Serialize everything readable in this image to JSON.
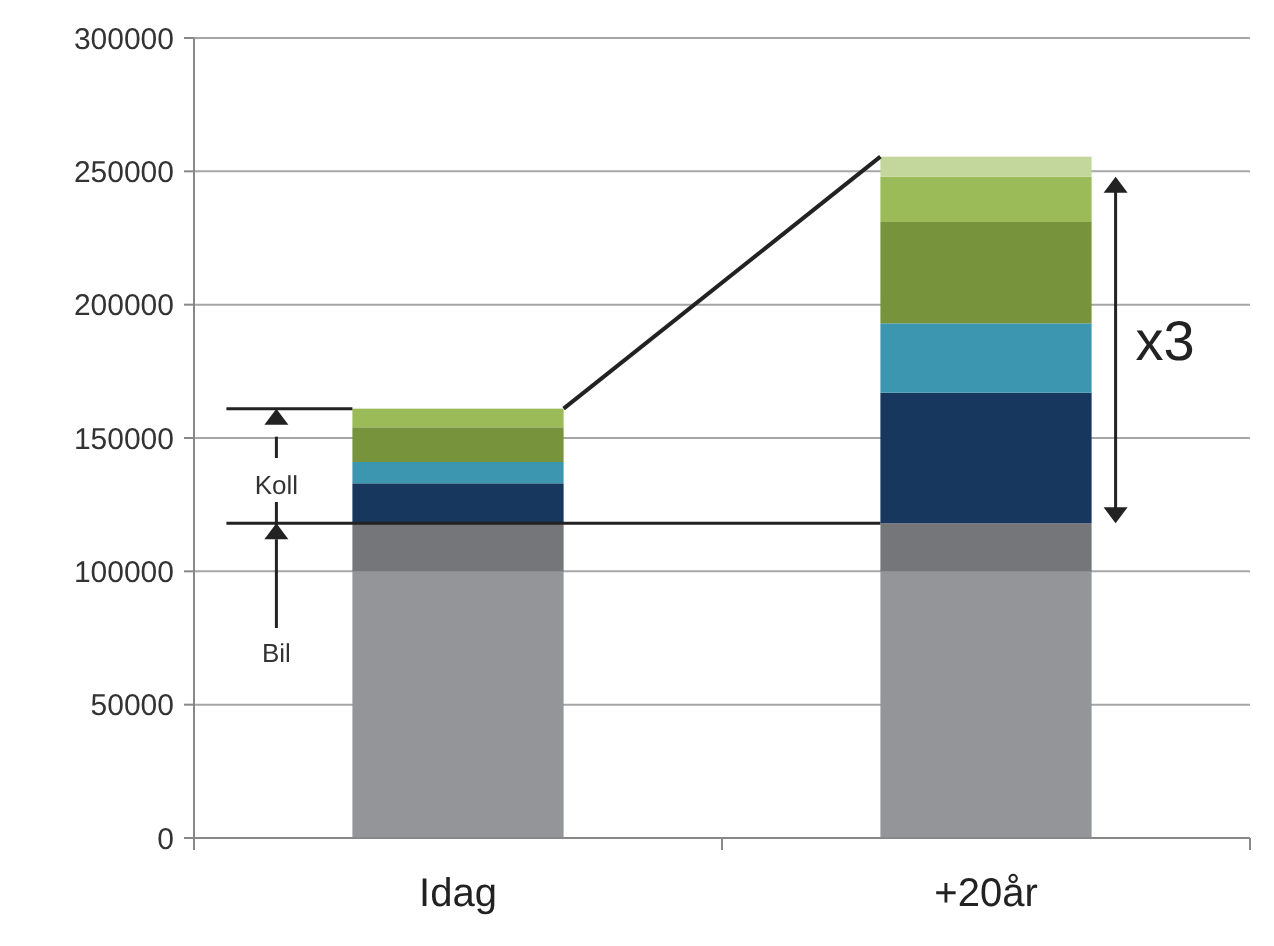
{
  "chart_data": {
    "type": "bar",
    "stacked": true,
    "categories": [
      "Idag",
      "+20år"
    ],
    "series": [
      {
        "color": "#939598",
        "values": [
          100000,
          100000
        ]
      },
      {
        "color": "#757679",
        "values": [
          18000,
          18000
        ]
      },
      {
        "color": "#17375e",
        "values": [
          15000,
          49000
        ]
      },
      {
        "color": "#3c96b0",
        "values": [
          8000,
          26000
        ]
      },
      {
        "color": "#77933c",
        "values": [
          13000,
          38000
        ]
      },
      {
        "color": "#9bbb59",
        "values": [
          7000,
          17000
        ]
      },
      {
        "color": "#c3d69b",
        "values": [
          0,
          7500
        ]
      }
    ],
    "ylim": [
      0,
      300000
    ],
    "yticks": [
      0,
      50000,
      100000,
      150000,
      200000,
      250000,
      300000
    ],
    "grid": "y",
    "ref_lines": [
      {
        "axis": "y",
        "value": 118000,
        "color": "#222222"
      },
      {
        "axis": "y",
        "value": 161000,
        "color": "#222222"
      }
    ],
    "annotations": [
      "Koll",
      "Bil",
      "x3"
    ]
  }
}
